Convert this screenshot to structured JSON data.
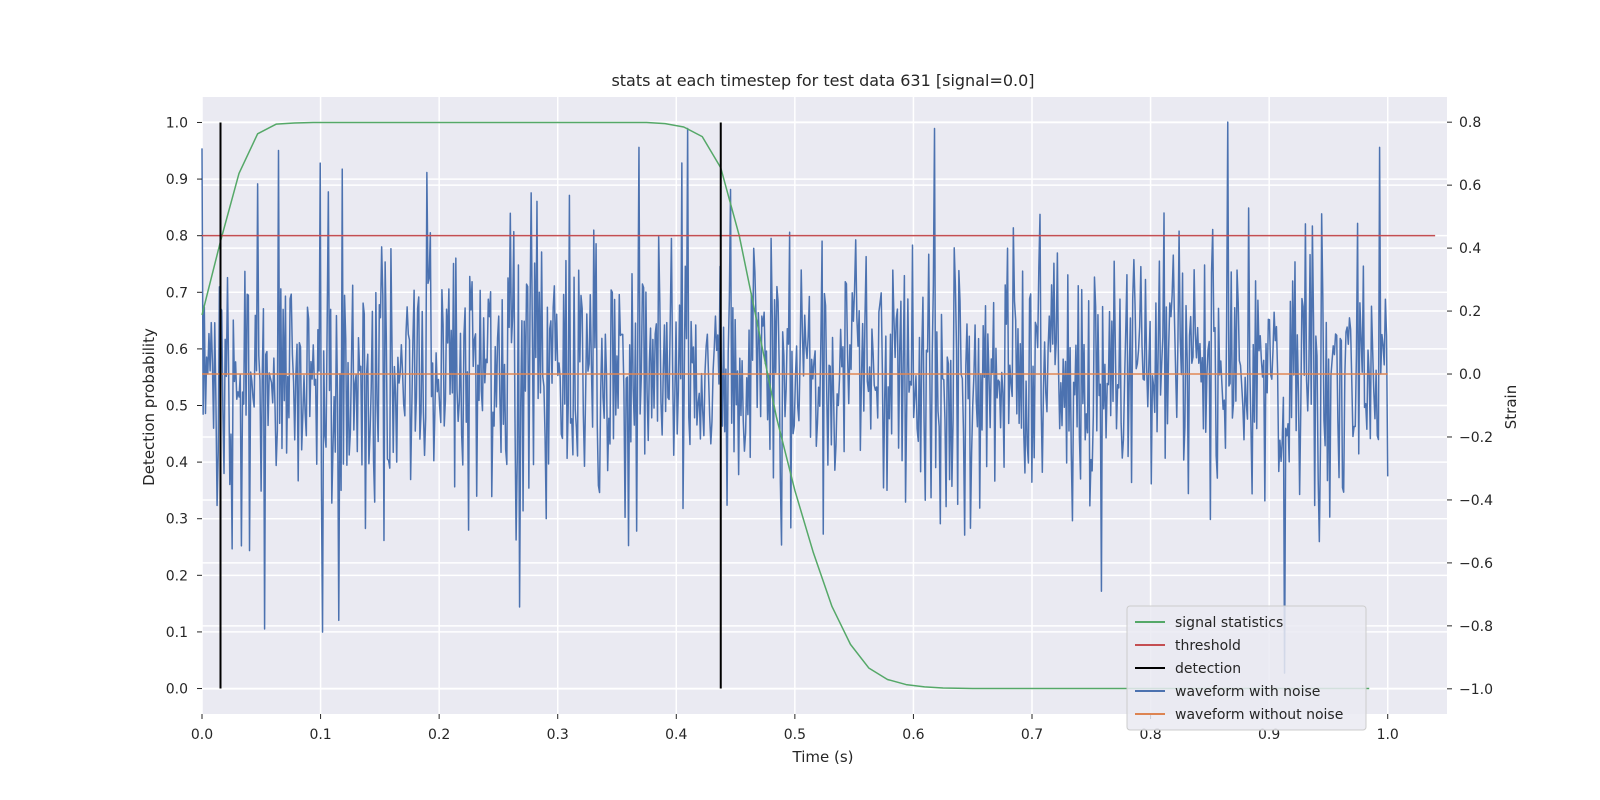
{
  "chart_data": {
    "type": "line",
    "title": "stats at each timestep for test data 631 [signal=0.0]",
    "xlabel": "Time (s)",
    "ylabel": "Detection probability",
    "y2label": "Strain",
    "xlim": [
      0.0,
      1.05
    ],
    "ylim": [
      -0.045,
      1.045
    ],
    "y2lim": [
      -1.08,
      0.88
    ],
    "grid": true,
    "legend_position": "lower-right",
    "x_ticks": [
      0.0,
      0.1,
      0.2,
      0.3,
      0.4,
      0.5,
      0.6,
      0.7,
      0.8,
      0.9,
      1.0
    ],
    "x_tick_labels": [
      "0.0",
      "0.1",
      "0.2",
      "0.3",
      "0.4",
      "0.5",
      "0.6",
      "0.7",
      "0.8",
      "0.9",
      "1.0"
    ],
    "y_ticks": [
      0.0,
      0.1,
      0.2,
      0.3,
      0.4,
      0.5,
      0.6,
      0.7,
      0.8,
      0.9,
      1.0
    ],
    "y_tick_labels": [
      "0.0",
      "0.1",
      "0.2",
      "0.3",
      "0.4",
      "0.5",
      "0.6",
      "0.7",
      "0.8",
      "0.9",
      "1.0"
    ],
    "y2_ticks": [
      0.8,
      0.6,
      0.4,
      0.2,
      0.0,
      -0.2,
      -0.4,
      -0.6,
      -0.8,
      -1.0
    ],
    "y2_tick_labels": [
      "0.8",
      "0.6",
      "0.4",
      "0.2",
      "0.0",
      "−0.2",
      "−0.4",
      "−0.6",
      "−0.8",
      "−1.0"
    ],
    "series": [
      {
        "name": "signal statistics",
        "axis": "left",
        "color": "#55a868",
        "x": [
          0.0,
          0.0156,
          0.0312,
          0.0469,
          0.0625,
          0.0781,
          0.0938,
          0.125,
          0.2,
          0.3,
          0.35,
          0.375,
          0.3906,
          0.4063,
          0.4219,
          0.4375,
          0.4531,
          0.4688,
          0.4844,
          0.5,
          0.5156,
          0.5313,
          0.5469,
          0.5625,
          0.5781,
          0.5938,
          0.6094,
          0.625,
          0.65,
          0.7,
          0.8,
          0.9,
          0.9844
        ],
        "values": [
          0.66,
          0.79,
          0.91,
          0.98,
          0.997,
          0.999,
          1.0,
          1.0,
          1.0,
          1.0,
          1.0,
          1.0,
          0.998,
          0.992,
          0.975,
          0.92,
          0.8,
          0.64,
          0.48,
          0.35,
          0.24,
          0.145,
          0.078,
          0.036,
          0.016,
          0.007,
          0.003,
          0.001,
          0.0,
          0.0,
          0.0,
          0.0,
          0.0
        ]
      },
      {
        "name": "threshold",
        "axis": "left",
        "color": "#c44e52",
        "x": [
          0.0,
          1.04
        ],
        "values": [
          0.8,
          0.8
        ]
      },
      {
        "name": "detection",
        "axis": "left",
        "color": "#000000",
        "segments": [
          {
            "x": 0.0156,
            "y0": 0.0,
            "y1": 1.0
          },
          {
            "x": 0.4375,
            "y0": 0.0,
            "y1": 1.0
          }
        ]
      },
      {
        "name": "waveform with noise",
        "axis": "right",
        "color": "#4c72b0",
        "x_start": 0.0,
        "x_end": 1.0,
        "n_samples": 1024,
        "values_range": [
          -0.95,
          0.8
        ],
        "std": 0.22,
        "notable_peaks": [
          {
            "x": 0.065,
            "y": 0.71
          },
          {
            "x": 0.1,
            "y": 0.67
          },
          {
            "x": 0.19,
            "y": 0.64
          },
          {
            "x": 0.41,
            "y": 0.78
          },
          {
            "x": 0.618,
            "y": 0.78
          },
          {
            "x": 0.865,
            "y": 0.8
          },
          {
            "x": 0.993,
            "y": 0.72
          },
          {
            "x": 0.053,
            "y": -0.81
          },
          {
            "x": 0.102,
            "y": -0.82
          },
          {
            "x": 0.268,
            "y": -0.74
          },
          {
            "x": 0.913,
            "y": -0.95
          },
          {
            "x": 0.759,
            "y": -0.69
          }
        ]
      },
      {
        "name": "waveform without noise",
        "axis": "right",
        "color": "#dd8452",
        "x": [
          0.0,
          1.0
        ],
        "values": [
          0.0,
          0.0
        ]
      }
    ]
  }
}
